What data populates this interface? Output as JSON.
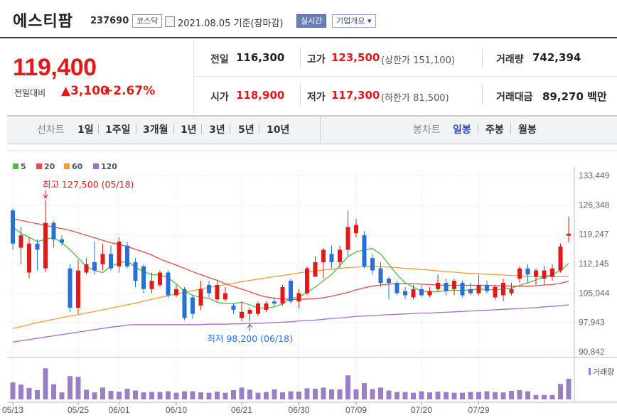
{
  "header": {
    "stock_name": "에스티팜",
    "stock_code": "237690",
    "market_badge": "코스닥",
    "date_text": "2021.08.05 기준(장마감)",
    "realtime_button": "실시간",
    "company_info_button": "기업개요 ▾"
  },
  "quote": {
    "price": "119,400",
    "change_label": "전일대비",
    "change_value": "▲3,100",
    "change_pct": "+2.67%",
    "prev_close_label": "전일",
    "prev_close": "116,300",
    "high_label": "고가",
    "high": "123,500",
    "upper_limit": "(상한가 151,100)",
    "volume_label": "거래량",
    "volume": "742,394",
    "open_label": "시가",
    "open": "118,900",
    "low_label": "저가",
    "low": "117,300",
    "lower_limit": "(하한가 81,500)",
    "amount_label": "거래대금",
    "amount": "89,270 백만"
  },
  "tabs": {
    "line_chart": "선차트",
    "periods": [
      "1일",
      "1주일",
      "3개월",
      "1년",
      "3년",
      "5년",
      "10년"
    ],
    "candle_chart": "봉차트",
    "candle_types": [
      "일봉",
      "주봉",
      "월봉"
    ]
  },
  "colors": {
    "up": "#e01a1a",
    "down": "#2a6fd6",
    "ma5": "#54b848",
    "ma20": "#e84b4b",
    "ma60": "#f39a3a",
    "ma120": "#a46bd1",
    "volume": "#9b7ec8"
  },
  "chart_data": {
    "type": "candlestick",
    "legend": [
      {
        "name": "5",
        "color": "#54b848"
      },
      {
        "name": "20",
        "color": "#e84b4b"
      },
      {
        "name": "60",
        "color": "#f39a3a"
      },
      {
        "name": "120",
        "color": "#a46bd1"
      }
    ],
    "y_ticks": [
      "133,449",
      "126,348",
      "119,247",
      "112,145",
      "105,044",
      "97,943",
      "90,842"
    ],
    "ylim": [
      90842,
      133449
    ],
    "x_ticks": [
      "05/13",
      "05/25",
      "06/01",
      "06/10",
      "06/21",
      "06/30",
      "07/09",
      "07/20",
      "07/29"
    ],
    "high_annotation": "최고 127,500 (05/18)",
    "low_annotation": "최저 98,200 (06/18)",
    "volume_label": "거래량",
    "candles": [
      {
        "o": 125000,
        "c": 117000,
        "h": 125500,
        "l": 115500,
        "v": 0.46
      },
      {
        "o": 116000,
        "c": 119000,
        "h": 121000,
        "l": 112000,
        "v": 0.4
      },
      {
        "o": 110000,
        "c": 117000,
        "h": 118500,
        "l": 108500,
        "v": 0.31
      },
      {
        "o": 117000,
        "c": 115500,
        "h": 118000,
        "l": 110500,
        "v": 0.25
      },
      {
        "o": 111000,
        "c": 122000,
        "h": 127500,
        "l": 110000,
        "v": 0.84
      },
      {
        "o": 122000,
        "c": 118000,
        "h": 122500,
        "l": 116000,
        "v": 0.41
      },
      {
        "o": 118000,
        "c": 117200,
        "h": 119000,
        "l": 116500,
        "v": 0.19
      },
      {
        "o": 111000,
        "c": 101500,
        "h": 112000,
        "l": 100500,
        "v": 0.63
      },
      {
        "o": 101500,
        "c": 110500,
        "h": 113000,
        "l": 100000,
        "v": 0.61
      },
      {
        "o": 110000,
        "c": 112000,
        "h": 113500,
        "l": 109500,
        "v": 0.26
      },
      {
        "o": 112500,
        "c": 110500,
        "h": 117500,
        "l": 109500,
        "v": 0.19
      },
      {
        "o": 112000,
        "c": 114500,
        "h": 117000,
        "l": 110500,
        "v": 0.32
      },
      {
        "o": 114500,
        "c": 111000,
        "h": 116500,
        "l": 110500,
        "v": 0.23
      },
      {
        "o": 111500,
        "c": 117500,
        "h": 118500,
        "l": 110000,
        "v": 0.21
      },
      {
        "o": 116500,
        "c": 111500,
        "h": 117500,
        "l": 111000,
        "v": 0.29
      },
      {
        "o": 112500,
        "c": 108000,
        "h": 113500,
        "l": 106500,
        "v": 0.24
      },
      {
        "o": 111500,
        "c": 106000,
        "h": 112000,
        "l": 105000,
        "v": 0.19
      },
      {
        "o": 106000,
        "c": 108000,
        "h": 110000,
        "l": 105000,
        "v": 0.2
      },
      {
        "o": 107000,
        "c": 110000,
        "h": 110500,
        "l": 106500,
        "v": 0.2
      },
      {
        "o": 110000,
        "c": 104500,
        "h": 110500,
        "l": 104000,
        "v": 0.22
      },
      {
        "o": 104500,
        "c": 106000,
        "h": 107000,
        "l": 104000,
        "v": 0.18
      },
      {
        "o": 106000,
        "c": 99000,
        "h": 106500,
        "l": 98500,
        "v": 0.22
      },
      {
        "o": 104000,
        "c": 100000,
        "h": 104500,
        "l": 98800,
        "v": 0.22
      },
      {
        "o": 102000,
        "c": 106000,
        "h": 108000,
        "l": 101000,
        "v": 0.19
      },
      {
        "o": 107000,
        "c": 105000,
        "h": 108000,
        "l": 104000,
        "v": 0.18
      },
      {
        "o": 103500,
        "c": 107000,
        "h": 108000,
        "l": 103000,
        "v": 0.21
      },
      {
        "o": 103500,
        "c": 105000,
        "h": 106500,
        "l": 103000,
        "v": 0.18
      },
      {
        "o": 102000,
        "c": 101000,
        "h": 102500,
        "l": 100000,
        "v": 0.25
      },
      {
        "o": 99000,
        "c": 100500,
        "h": 103000,
        "l": 98200,
        "v": 0.32
      },
      {
        "o": 100000,
        "c": 101000,
        "h": 101500,
        "l": 98200,
        "v": 0.26
      },
      {
        "o": 100000,
        "c": 102500,
        "h": 103000,
        "l": 99500,
        "v": 0.18
      },
      {
        "o": 101000,
        "c": 102500,
        "h": 103000,
        "l": 100500,
        "v": 0.2
      },
      {
        "o": 103000,
        "c": 102500,
        "h": 104000,
        "l": 102000,
        "v": 0.27
      },
      {
        "o": 102500,
        "c": 106500,
        "h": 107000,
        "l": 102000,
        "v": 0.19
      },
      {
        "o": 108000,
        "c": 103000,
        "h": 108500,
        "l": 102500,
        "v": 0.22
      },
      {
        "o": 103000,
        "c": 105000,
        "h": 106000,
        "l": 101500,
        "v": 0.21
      },
      {
        "o": 105000,
        "c": 111000,
        "h": 111500,
        "l": 104500,
        "v": 0.3
      },
      {
        "o": 109000,
        "c": 112500,
        "h": 114000,
        "l": 109000,
        "v": 0.29
      },
      {
        "o": 112500,
        "c": 115500,
        "h": 116000,
        "l": 108500,
        "v": 0.32
      },
      {
        "o": 114500,
        "c": 112500,
        "h": 116500,
        "l": 111000,
        "v": 0.27
      },
      {
        "o": 112500,
        "c": 115500,
        "h": 116500,
        "l": 111000,
        "v": 0.27
      },
      {
        "o": 115500,
        "c": 121000,
        "h": 125000,
        "l": 114000,
        "v": 0.65
      },
      {
        "o": 119500,
        "c": 121500,
        "h": 123000,
        "l": 118500,
        "v": 0.27
      },
      {
        "o": 119000,
        "c": 111500,
        "h": 120000,
        "l": 111000,
        "v": 0.44
      },
      {
        "o": 113500,
        "c": 110500,
        "h": 114500,
        "l": 109500,
        "v": 0.28
      },
      {
        "o": 111000,
        "c": 107500,
        "h": 112500,
        "l": 106500,
        "v": 0.32
      },
      {
        "o": 108500,
        "c": 107500,
        "h": 109000,
        "l": 103500,
        "v": 0.24
      },
      {
        "o": 107500,
        "c": 105000,
        "h": 108000,
        "l": 104500,
        "v": 0.2
      },
      {
        "o": 105500,
        "c": 104500,
        "h": 106500,
        "l": 103500,
        "v": 0.2
      },
      {
        "o": 104000,
        "c": 106000,
        "h": 107000,
        "l": 103500,
        "v": 0.18
      },
      {
        "o": 106000,
        "c": 104500,
        "h": 107000,
        "l": 104000,
        "v": 0.22
      },
      {
        "o": 104500,
        "c": 105500,
        "h": 106500,
        "l": 104000,
        "v": 0.19
      },
      {
        "o": 106000,
        "c": 107500,
        "h": 109500,
        "l": 105500,
        "v": 0.21
      },
      {
        "o": 107500,
        "c": 105500,
        "h": 108500,
        "l": 104500,
        "v": 0.2
      },
      {
        "o": 106000,
        "c": 108000,
        "h": 108500,
        "l": 104500,
        "v": 0.18
      },
      {
        "o": 107500,
        "c": 104500,
        "h": 108000,
        "l": 104000,
        "v": 0.18
      },
      {
        "o": 106000,
        "c": 105000,
        "h": 107500,
        "l": 104500,
        "v": 0.2
      },
      {
        "o": 105000,
        "c": 107000,
        "h": 109500,
        "l": 104500,
        "v": 0.2
      },
      {
        "o": 107000,
        "c": 105500,
        "h": 108000,
        "l": 105000,
        "v": 0.22
      },
      {
        "o": 104000,
        "c": 106500,
        "h": 107000,
        "l": 103500,
        "v": 0.2
      },
      {
        "o": 104500,
        "c": 107500,
        "h": 108500,
        "l": 103000,
        "v": 0.19
      },
      {
        "o": 105000,
        "c": 106000,
        "h": 107500,
        "l": 104500,
        "v": 0.23
      },
      {
        "o": 108500,
        "c": 111000,
        "h": 111500,
        "l": 107500,
        "v": 0.25
      },
      {
        "o": 111000,
        "c": 109500,
        "h": 112000,
        "l": 107500,
        "v": 0.22
      },
      {
        "o": 109000,
        "c": 110500,
        "h": 111000,
        "l": 107000,
        "v": 0.12
      },
      {
        "o": 108500,
        "c": 110500,
        "h": 111500,
        "l": 107000,
        "v": 0.12
      },
      {
        "o": 109000,
        "c": 111000,
        "h": 112000,
        "l": 108000,
        "v": 0.12
      },
      {
        "o": 110500,
        "c": 116300,
        "h": 117000,
        "l": 110000,
        "v": 0.42
      },
      {
        "o": 118900,
        "c": 119400,
        "h": 123500,
        "l": 117300,
        "v": 0.56
      }
    ],
    "ma5": [
      121000,
      119500,
      118500,
      117500,
      118000,
      118500,
      117200,
      115500,
      113500,
      111500,
      110500,
      110000,
      111500,
      112300,
      112800,
      111300,
      110200,
      109500,
      109400,
      108800,
      107200,
      105500,
      104500,
      104000,
      103800,
      102800,
      102500,
      102500,
      102800,
      102200,
      101400,
      101400,
      101700,
      102400,
      103800,
      104000,
      105200,
      106500,
      108000,
      109500,
      111700,
      113800,
      115000,
      115500,
      115800,
      114500,
      112000,
      109500,
      107500,
      106500,
      105500,
      105300,
      105400,
      105600,
      105700,
      105700,
      105800,
      106000,
      105900,
      105800,
      106000,
      106200,
      106900,
      107500,
      108200,
      109000,
      109500,
      110500,
      112200
    ],
    "ma20": [
      123000,
      122600,
      122200,
      121800,
      121400,
      121000,
      120600,
      120200,
      119600,
      119000,
      118400,
      117800,
      117200,
      116800,
      116300,
      115600,
      115000,
      114200,
      113300,
      112500,
      111800,
      111000,
      110200,
      109500,
      108800,
      108100,
      107300,
      106600,
      106000,
      105300,
      104600,
      104100,
      103800,
      103600,
      103500,
      103500,
      103600,
      103700,
      103900,
      104300,
      104700,
      105200,
      105800,
      106300,
      106700,
      107000,
      107200,
      107300,
      107300,
      107300,
      107200,
      107100,
      107000,
      106900,
      106900,
      106900,
      106900,
      106900,
      106900,
      106800,
      106800,
      106700,
      106700,
      106700,
      106800,
      107000,
      107100,
      107400,
      107900
    ],
    "ma60": [
      96500,
      96900,
      97400,
      97900,
      98300,
      98700,
      99100,
      99500,
      99800,
      100200,
      100600,
      101000,
      101400,
      101800,
      102200,
      102600,
      103100,
      103500,
      104000,
      104400,
      104800,
      105200,
      105600,
      106000,
      106400,
      106700,
      107100,
      107400,
      107800,
      108100,
      108400,
      108700,
      109000,
      109300,
      109600,
      109900,
      110200,
      110400,
      110600,
      110800,
      111000,
      111200,
      111300,
      111400,
      111400,
      111400,
      111300,
      111200,
      111000,
      110900,
      110700,
      110600,
      110400,
      110200,
      110100,
      109900,
      109800,
      109700,
      109600,
      109500,
      109400,
      109300,
      109200,
      109100,
      109000,
      109000,
      109000,
      109000,
      109000
    ],
    "ma120": [
      93200,
      93500,
      93800,
      94100,
      94400,
      94700,
      95000,
      95300,
      95600,
      95900,
      96200,
      96500,
      96800,
      97000,
      97300,
      97400,
      97400,
      97400,
      97400,
      97400,
      97400,
      97400,
      97400,
      97400,
      97500,
      97500,
      97500,
      97600,
      97600,
      97700,
      97700,
      97800,
      97900,
      98000,
      98100,
      98300,
      98400,
      98500,
      98700,
      98900,
      99000,
      99200,
      99400,
      99500,
      99600,
      99700,
      99800,
      99900,
      100000,
      100100,
      100200,
      100200,
      100300,
      100400,
      100500,
      100600,
      100700,
      100800,
      100900,
      101000,
      101100,
      101200,
      101300,
      101400,
      101500,
      101700,
      101800,
      102000,
      102200
    ]
  }
}
